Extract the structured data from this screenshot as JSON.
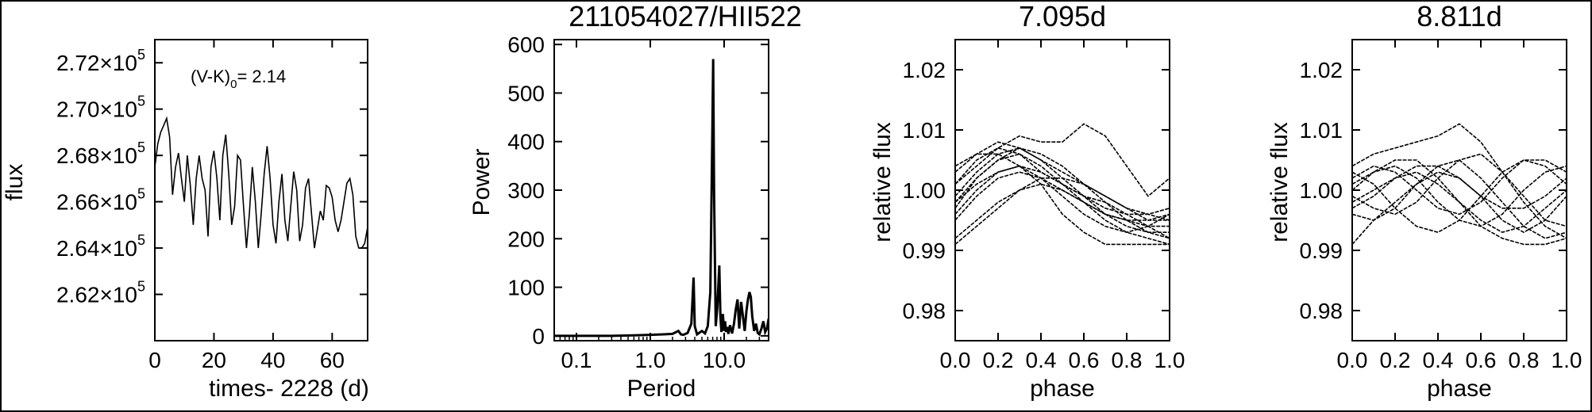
{
  "chart_data": [
    {
      "type": "line",
      "title": "",
      "xlabel": "times- 2228 (d)",
      "ylabel": "flux",
      "xlim": [
        0,
        72
      ],
      "ylim": [
        260000,
        273000
      ],
      "xticks": [
        0,
        20,
        40,
        60
      ],
      "xtick_labels": [
        "0",
        "20",
        "40",
        "60"
      ],
      "yticks": [
        262000,
        264000,
        266000,
        268000,
        270000,
        272000
      ],
      "ytick_labels": [
        {
          "mant": "2.62×10",
          "exp": "5"
        },
        {
          "mant": "2.64×10",
          "exp": "5"
        },
        {
          "mant": "2.66×10",
          "exp": "5"
        },
        {
          "mant": "2.68×10",
          "exp": "5"
        },
        {
          "mant": "2.70×10",
          "exp": "5"
        },
        {
          "mant": "2.72×10",
          "exp": "5"
        }
      ],
      "annotation": {
        "prefix": "(V-K)",
        "sub": "0",
        "suffix": "= 2.14"
      },
      "series": [
        {
          "x": [
            0,
            1,
            2,
            3,
            4,
            5,
            6,
            7,
            8,
            9,
            10,
            11,
            12,
            13,
            14,
            15,
            16,
            17,
            18,
            19,
            20,
            21,
            22,
            23,
            24,
            25,
            26,
            27,
            28,
            29,
            30,
            31,
            32,
            33,
            34,
            35,
            36,
            37,
            38,
            39,
            40,
            41,
            42,
            43,
            44,
            45,
            46,
            47,
            48,
            49,
            50,
            51,
            52,
            53,
            54,
            55,
            56,
            57,
            58,
            59,
            60,
            61,
            62,
            63,
            64,
            65,
            66,
            67,
            68,
            69,
            70,
            71,
            72
          ],
          "y": [
            267500,
            268500,
            269000,
            269300,
            269600,
            268800,
            266300,
            267500,
            268100,
            267000,
            266000,
            268000,
            266700,
            265000,
            267000,
            268000,
            267000,
            266500,
            264500,
            267500,
            268200,
            267000,
            265200,
            268000,
            268900,
            267200,
            265000,
            265800,
            268000,
            267800,
            265800,
            264000,
            265500,
            267500,
            266000,
            264000,
            265500,
            267200,
            268400,
            267000,
            265000,
            264200,
            266000,
            267200,
            265200,
            264300,
            265800,
            267300,
            266500,
            264300,
            265000,
            266600,
            267000,
            265500,
            264000,
            264800,
            265600,
            265200,
            266700,
            266600,
            266200,
            265200,
            264700,
            265200,
            266000,
            266800,
            267000,
            266300,
            264500,
            264000,
            264000,
            264200,
            264900
          ]
        }
      ]
    },
    {
      "type": "line",
      "title": "211054027/HII522",
      "xlabel": "Period",
      "ylabel": "Power",
      "xscale": "log",
      "xlim": [
        0.05,
        40
      ],
      "ylim": [
        -10,
        610
      ],
      "xticks": [
        0.1,
        1.0,
        10.0
      ],
      "xtick_labels": [
        "0.1",
        "1.0",
        "10.0"
      ],
      "yticks": [
        0,
        100,
        200,
        300,
        400,
        500,
        600
      ],
      "ytick_labels": [
        "0",
        "100",
        "200",
        "300",
        "400",
        "500",
        "600"
      ],
      "series": [
        {
          "x": [
            0.05,
            0.1,
            0.3,
            0.6,
            1.0,
            1.5,
            2.0,
            2.4,
            2.6,
            2.8,
            3.2,
            3.6,
            3.85,
            4.0,
            4.3,
            5.0,
            5.5,
            6.0,
            6.5,
            6.9,
            7.1,
            7.3,
            7.7,
            8.1,
            8.6,
            8.9,
            9.2,
            9.6,
            10.0,
            10.3,
            10.6,
            11.0,
            11.4,
            12.0,
            12.8,
            13.6,
            14.4,
            15.2,
            16.0,
            17.0,
            18.0,
            19.0,
            20.0,
            21.0,
            22.0,
            23.0,
            24.0,
            25.5,
            27.0,
            28.5,
            30.0,
            32.0,
            34.0,
            36.0,
            38.0,
            40.0
          ],
          "y": [
            0,
            0,
            0,
            1,
            2,
            3,
            4,
            10,
            3,
            2,
            6,
            25,
            120,
            20,
            3,
            10,
            5,
            20,
            90,
            400,
            570,
            300,
            20,
            60,
            145,
            40,
            8,
            45,
            10,
            30,
            8,
            18,
            4,
            22,
            5,
            25,
            55,
            75,
            15,
            70,
            40,
            10,
            50,
            75,
            90,
            80,
            40,
            10,
            25,
            6,
            3,
            15,
            30,
            8,
            15,
            35
          ]
        }
      ]
    },
    {
      "type": "line",
      "title": "7.095d",
      "xlabel": "phase",
      "ylabel": "relative flux",
      "xlim": [
        0,
        1
      ],
      "ylim": [
        0.975,
        1.025
      ],
      "xticks": [
        0,
        0.2,
        0.4,
        0.6,
        0.8,
        1.0
      ],
      "xtick_labels": [
        "0.0",
        "0.2",
        "0.4",
        "0.6",
        "0.8",
        "1.0"
      ],
      "yticks": [
        0.98,
        0.99,
        1.0,
        1.01,
        1.02
      ],
      "ytick_labels": [
        "0.98",
        "0.99",
        "1.00",
        "1.01",
        "1.02"
      ],
      "series": [
        {
          "x": [
            0,
            0.1,
            0.2,
            0.3,
            0.4,
            0.5,
            0.6,
            0.7,
            0.8,
            0.9,
            1.0
          ],
          "y": [
            1.001,
            1.005,
            1.007,
            1.006,
            1.003,
            1.001,
            0.999,
            0.998,
            0.996,
            0.994,
            0.992
          ]
        },
        {
          "x": [
            0,
            0.1,
            0.2,
            0.3,
            0.4,
            0.5,
            0.6,
            0.7,
            0.8,
            0.9,
            1.0
          ],
          "y": [
            0.999,
            1.003,
            1.006,
            1.007,
            1.005,
            1.002,
            0.999,
            0.996,
            0.994,
            0.993,
            0.993
          ]
        },
        {
          "x": [
            0,
            0.1,
            0.2,
            0.3,
            0.4,
            0.5,
            0.6,
            0.7,
            0.8,
            0.9,
            1.0
          ],
          "y": [
            1.003,
            1.006,
            1.008,
            1.007,
            1.005,
            1.003,
            1.001,
            0.999,
            0.997,
            0.995,
            0.995
          ]
        },
        {
          "x": [
            0,
            0.1,
            0.2,
            0.3,
            0.4,
            0.5,
            0.6,
            0.7,
            0.8,
            0.9,
            1.0
          ],
          "y": [
            0.997,
            1.002,
            1.005,
            1.006,
            1.004,
            1.001,
            0.998,
            0.995,
            0.993,
            0.992,
            0.991
          ]
        },
        {
          "x": [
            0,
            0.1,
            0.2,
            0.3,
            0.4,
            0.5,
            0.6,
            0.7,
            0.8,
            0.9,
            1.0
          ],
          "y": [
            0.992,
            0.995,
            0.998,
            1.0,
            1.001,
            1.0,
            0.998,
            0.996,
            0.995,
            0.994,
            0.994
          ]
        },
        {
          "x": [
            0,
            0.1,
            0.2,
            0.3,
            0.4,
            0.5,
            0.6,
            0.7,
            0.8,
            0.9,
            1.0
          ],
          "y": [
            0.991,
            0.994,
            0.997,
            1.0,
            1.002,
            1.002,
            1.001,
            0.999,
            0.997,
            0.996,
            0.995
          ]
        },
        {
          "x": [
            0,
            0.1,
            0.2,
            0.3,
            0.4,
            0.5,
            0.6,
            0.7,
            0.8,
            0.9,
            1.0
          ],
          "y": [
            0.995,
            0.999,
            1.002,
            1.003,
            1.002,
            1.0,
            0.998,
            0.996,
            0.995,
            0.995,
            0.996
          ]
        },
        {
          "x": [
            0,
            0.1,
            0.2,
            0.3,
            0.4,
            0.5,
            0.6,
            0.7,
            0.8,
            0.9,
            1.0
          ],
          "y": [
            0.998,
            1.001,
            1.003,
            1.004,
            1.003,
            1.001,
            0.999,
            0.997,
            0.996,
            0.996,
            0.997
          ]
        },
        {
          "x": [
            0,
            0.1,
            0.2,
            0.3,
            0.4,
            0.5,
            0.6,
            0.7,
            0.8,
            0.9,
            1.0
          ],
          "y": [
            1.004,
            1.006,
            1.006,
            1.004,
            1.002,
            0.999,
            0.996,
            0.994,
            0.993,
            0.994,
            0.996
          ]
        },
        {
          "x": [
            0,
            0.1,
            0.2,
            0.3,
            0.4,
            0.5,
            0.6,
            0.7,
            0.8,
            0.9,
            1.0
          ],
          "y": [
            0.998,
            1.002,
            1.005,
            1.007,
            1.006,
            1.004,
            1.001,
            0.998,
            0.995,
            0.993,
            0.992
          ]
        },
        {
          "x": [
            0,
            0.1,
            0.2,
            0.3,
            0.4,
            0.5,
            0.6,
            0.7,
            0.8,
            0.9,
            1.0
          ],
          "y": [
            1.001,
            1.004,
            1.007,
            1.009,
            1.008,
            1.008,
            1.011,
            1.009,
            1.004,
            0.999,
            1.002
          ]
        },
        {
          "x": [
            0,
            0.1,
            0.2,
            0.3,
            0.4,
            0.5,
            0.6,
            0.7,
            0.8,
            0.9,
            1.0
          ],
          "y": [
            0.996,
            1.0,
            1.003,
            1.004,
            1.001,
            0.996,
            0.993,
            0.991,
            0.991,
            0.991,
            0.991
          ]
        }
      ]
    },
    {
      "type": "line",
      "title": "8.811d",
      "xlabel": "phase",
      "ylabel": "relative flux",
      "xlim": [
        0,
        1
      ],
      "ylim": [
        0.975,
        1.025
      ],
      "xticks": [
        0,
        0.2,
        0.4,
        0.6,
        0.8,
        1.0
      ],
      "xtick_labels": [
        "0.0",
        "0.2",
        "0.4",
        "0.6",
        "0.8",
        "1.0"
      ],
      "yticks": [
        0.98,
        0.99,
        1.0,
        1.01,
        1.02
      ],
      "ytick_labels": [
        "0.98",
        "0.99",
        "1.00",
        "1.01",
        "1.02"
      ],
      "series": [
        {
          "x": [
            0,
            0.1,
            0.2,
            0.3,
            0.4,
            0.5,
            0.6,
            0.7,
            0.8,
            0.9,
            1.0
          ],
          "y": [
            1.004,
            1.006,
            1.007,
            1.008,
            1.009,
            1.011,
            1.008,
            1.003,
            0.998,
            0.994,
            0.992
          ]
        },
        {
          "x": [
            0,
            0.1,
            0.2,
            0.3,
            0.4,
            0.5,
            0.6,
            0.7,
            0.8,
            0.9,
            1.0
          ],
          "y": [
            0.991,
            0.995,
            0.998,
            1.001,
            1.003,
            1.002,
            0.999,
            0.995,
            0.993,
            0.995,
            0.999
          ]
        },
        {
          "x": [
            0,
            0.1,
            0.2,
            0.3,
            0.4,
            0.5,
            0.6,
            0.7,
            0.8,
            0.9,
            1.0
          ],
          "y": [
            1.0,
            1.003,
            1.004,
            1.002,
            0.998,
            0.995,
            0.994,
            0.996,
            1.0,
            1.003,
            1.004
          ]
        },
        {
          "x": [
            0,
            0.1,
            0.2,
            0.3,
            0.4,
            0.5,
            0.6,
            0.7,
            0.8,
            0.9,
            1.0
          ],
          "y": [
            0.996,
            0.995,
            0.997,
            1.001,
            1.004,
            1.005,
            1.002,
            0.998,
            0.994,
            0.992,
            0.993
          ]
        },
        {
          "x": [
            0,
            0.1,
            0.2,
            0.3,
            0.4,
            0.5,
            0.6,
            0.7,
            0.8,
            0.9,
            1.0
          ],
          "y": [
            1.003,
            1.001,
            0.997,
            0.994,
            0.993,
            0.995,
            0.999,
            1.003,
            1.005,
            1.004,
            1.001
          ]
        },
        {
          "x": [
            0,
            0.1,
            0.2,
            0.3,
            0.4,
            0.5,
            0.6,
            0.7,
            0.8,
            0.9,
            1.0
          ],
          "y": [
            0.998,
            1.0,
            1.002,
            1.003,
            1.001,
            0.998,
            0.995,
            0.993,
            0.994,
            0.997,
            1.0
          ]
        },
        {
          "x": [
            0,
            0.1,
            0.2,
            0.3,
            0.4,
            0.5,
            0.6,
            0.7,
            0.8,
            0.9,
            1.0
          ],
          "y": [
            1.002,
            1.004,
            1.003,
            1.0,
            0.997,
            0.996,
            0.998,
            1.002,
            1.005,
            1.005,
            1.003
          ]
        },
        {
          "x": [
            0,
            0.1,
            0.2,
            0.3,
            0.4,
            0.5,
            0.6,
            0.7,
            0.8,
            0.9,
            1.0
          ],
          "y": [
            0.999,
            0.997,
            0.996,
            0.998,
            1.002,
            1.005,
            1.006,
            1.003,
            0.999,
            0.995,
            0.994
          ]
        },
        {
          "x": [
            0,
            0.1,
            0.2,
            0.3,
            0.4,
            0.5,
            0.6,
            0.7,
            0.8,
            0.9,
            1.0
          ],
          "y": [
            1.001,
            1.003,
            1.005,
            1.005,
            1.002,
            0.998,
            0.994,
            0.992,
            0.991,
            0.991,
            0.992
          ]
        },
        {
          "x": [
            0,
            0.1,
            0.2,
            0.3,
            0.4,
            0.5,
            0.6,
            0.7,
            0.8,
            0.9,
            1.0
          ],
          "y": [
            0.997,
            0.999,
            1.002,
            1.004,
            1.004,
            1.002,
            0.999,
            0.997,
            0.997,
            0.999,
            1.002
          ]
        }
      ]
    }
  ]
}
